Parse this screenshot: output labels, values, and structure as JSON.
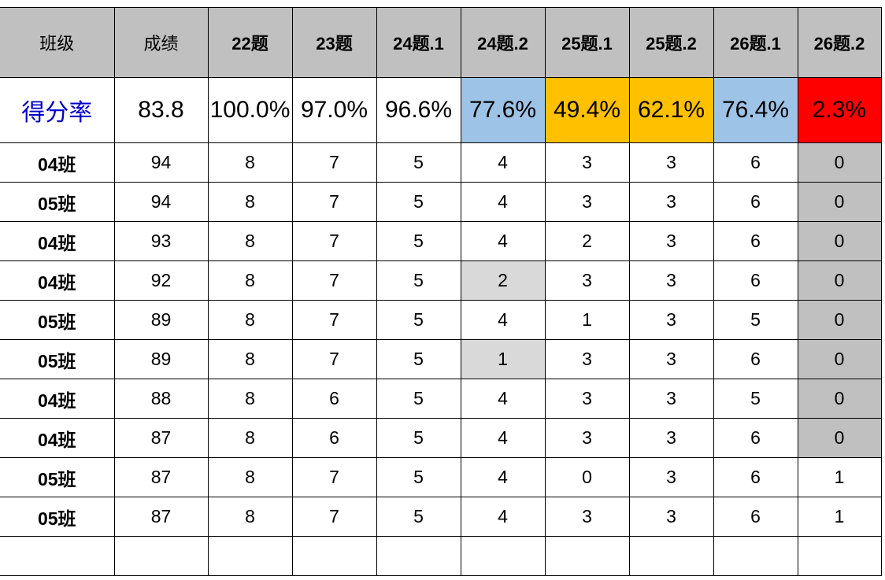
{
  "headers": [
    "班级",
    "成绩",
    "22题",
    "23题",
    "24题.1",
    "24题.2",
    "25题.1",
    "25题.2",
    "26题.1",
    "26题.2"
  ],
  "rate_row": {
    "label": "得分率",
    "score": "83.8",
    "rates": [
      "100.0%",
      "97.0%",
      "96.6%",
      "77.6%",
      "49.4%",
      "62.1%",
      "76.4%",
      "2.3%"
    ]
  },
  "colors": {
    "header_bg": "#c0c0c0",
    "light_blue": "#9dc3e6",
    "orange": "#ffc000",
    "red": "#ff0000",
    "highlight_gray": "#d9d9d9",
    "label_blue": "#0000cc"
  },
  "rows": [
    {
      "cls": "04班",
      "score": "94",
      "q": [
        "8",
        "7",
        "5",
        "4",
        "3",
        "3",
        "6",
        "0"
      ]
    },
    {
      "cls": "05班",
      "score": "94",
      "q": [
        "8",
        "7",
        "5",
        "4",
        "3",
        "3",
        "6",
        "0"
      ]
    },
    {
      "cls": "04班",
      "score": "93",
      "q": [
        "8",
        "7",
        "5",
        "4",
        "2",
        "3",
        "6",
        "0"
      ]
    },
    {
      "cls": "04班",
      "score": "92",
      "q": [
        "8",
        "7",
        "5",
        "2",
        "3",
        "3",
        "6",
        "0"
      ]
    },
    {
      "cls": "05班",
      "score": "89",
      "q": [
        "8",
        "7",
        "5",
        "4",
        "1",
        "3",
        "5",
        "0"
      ]
    },
    {
      "cls": "05班",
      "score": "89",
      "q": [
        "8",
        "7",
        "5",
        "1",
        "3",
        "3",
        "6",
        "0"
      ]
    },
    {
      "cls": "04班",
      "score": "88",
      "q": [
        "8",
        "6",
        "5",
        "4",
        "3",
        "3",
        "5",
        "0"
      ]
    },
    {
      "cls": "04班",
      "score": "87",
      "q": [
        "8",
        "6",
        "5",
        "4",
        "3",
        "3",
        "6",
        "0"
      ]
    },
    {
      "cls": "05班",
      "score": "87",
      "q": [
        "8",
        "7",
        "5",
        "4",
        "0",
        "3",
        "6",
        "1"
      ]
    },
    {
      "cls": "05班",
      "score": "87",
      "q": [
        "8",
        "7",
        "5",
        "4",
        "3",
        "3",
        "6",
        "1"
      ]
    }
  ]
}
